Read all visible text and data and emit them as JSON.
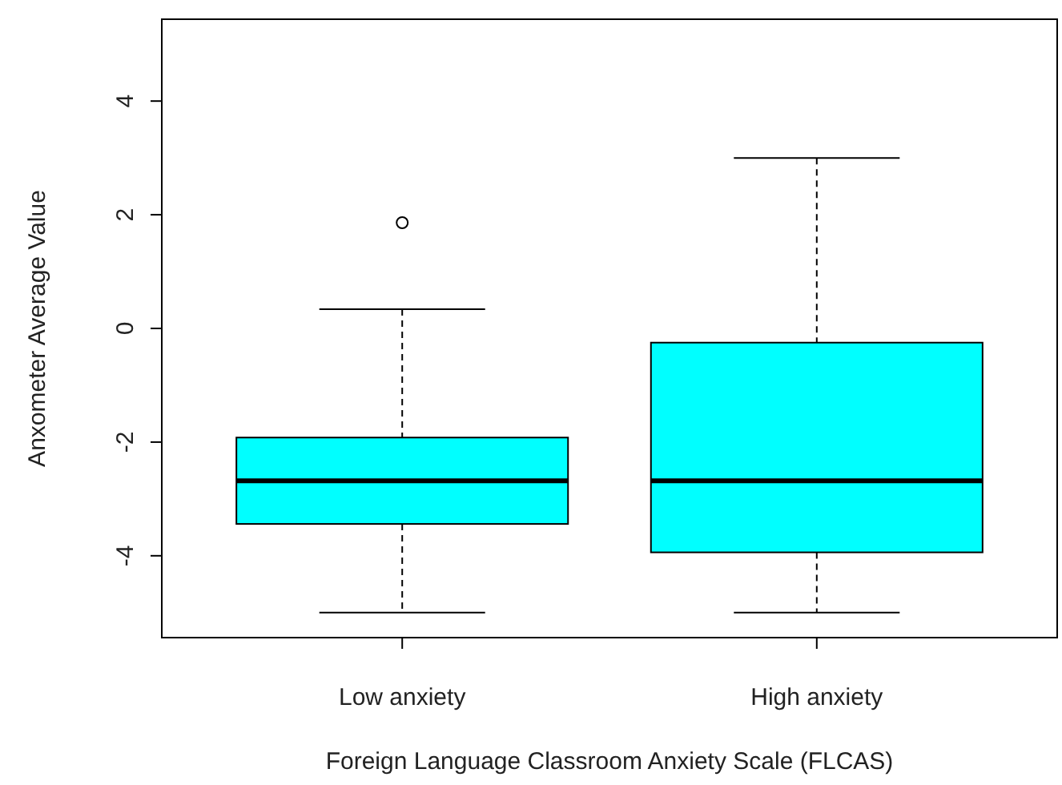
{
  "chart_data": {
    "type": "box",
    "xlabel": "Foreign Language Classroom Anxiety Scale (FLCAS)",
    "ylabel": "Anxometer Average Value",
    "categories": [
      "Low anxiety",
      "High anxiety"
    ],
    "color": "#00ffff",
    "boxes": [
      {
        "low": -5,
        "q1": -3.44,
        "median": -2.68,
        "q3": -1.92,
        "high": 0.34,
        "outliers": [
          1.86
        ]
      },
      {
        "low": -5,
        "q1": -3.94,
        "median": -2.68,
        "q3": -0.25,
        "high": 3
      }
    ],
    "ylim": [
      -5.44,
      5.44
    ],
    "yticks": [
      -4,
      -2,
      0,
      2,
      4
    ],
    "grid": false
  }
}
